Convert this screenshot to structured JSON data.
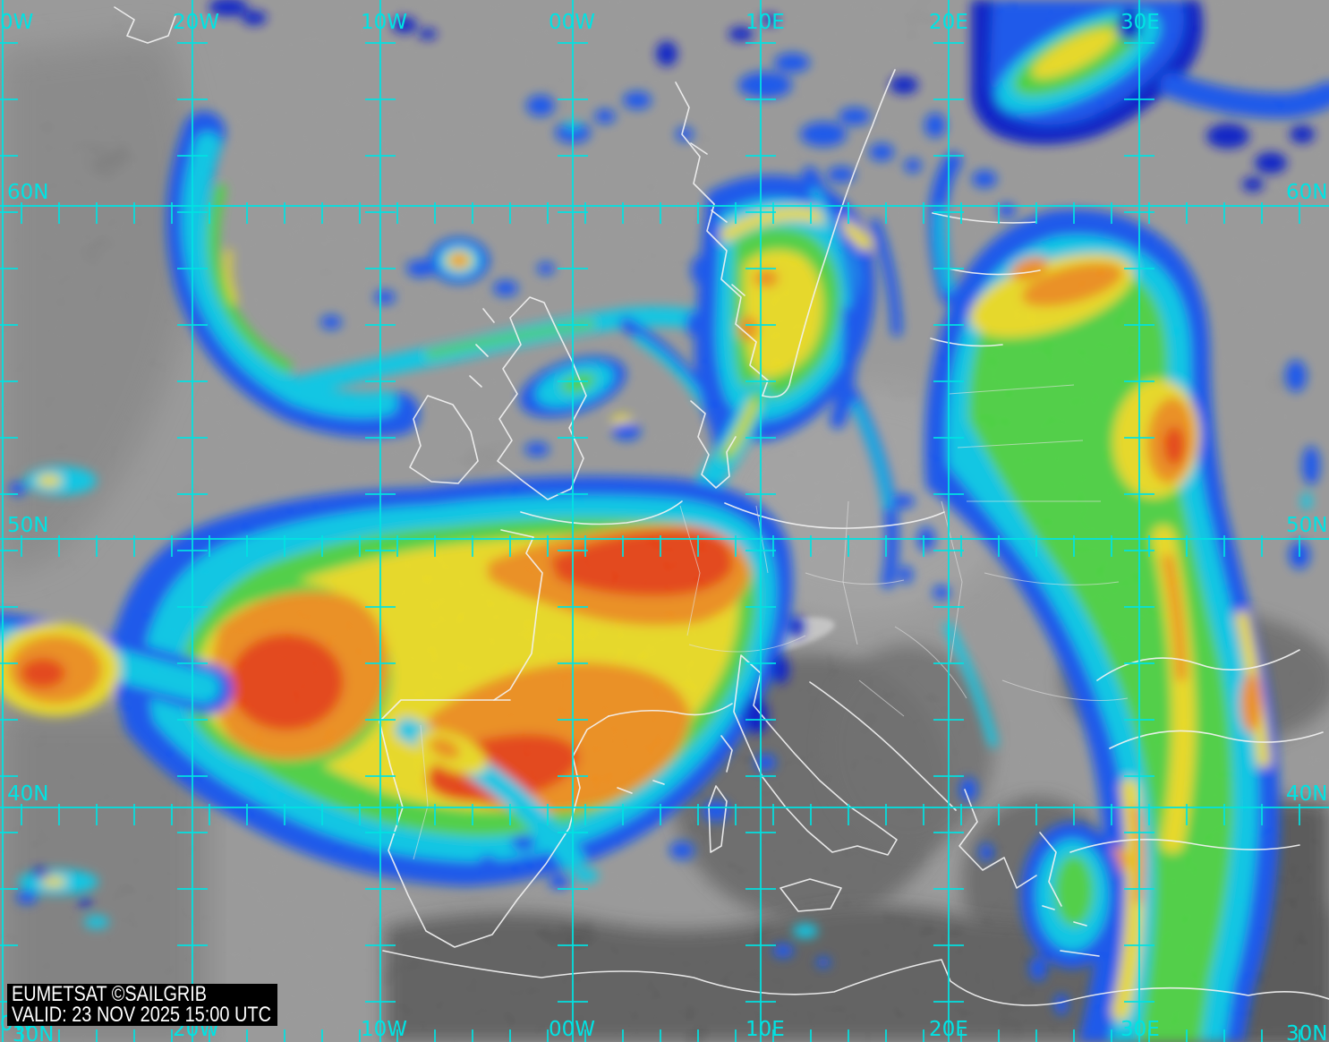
{
  "grid": {
    "color": "#00e3e3",
    "top_labels": [
      "0W",
      "20W",
      "10W",
      "00W",
      "10E",
      "20E",
      "30E"
    ],
    "bottom_labels": [
      "0W",
      "20W",
      "10W",
      "00W",
      "10E",
      "20E",
      "30E"
    ],
    "left_labels": [
      "60N",
      "50N",
      "40N"
    ],
    "right_labels": [
      "60N",
      "50N",
      "40N"
    ],
    "bottom_left_lat_label": "30N",
    "bottom_right_lat_label": "30N"
  },
  "caption": {
    "line1": "EUMETSAT ©SAILGRIB",
    "line2": "VALID:  23 NOV 2025 15:00 UTC",
    "background": "#000000",
    "text_color": "#ffffff"
  },
  "ir_color_scale": [
    "#0014c8",
    "#0a50f0",
    "#00c8e8",
    "#46d23c",
    "#ecdc1e",
    "#f08c14",
    "#e83c0a"
  ]
}
